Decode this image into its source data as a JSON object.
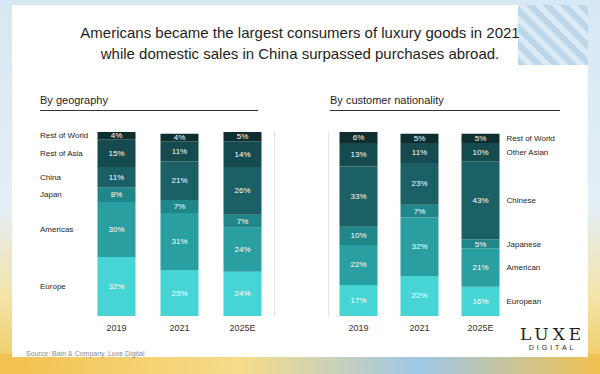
{
  "title": [
    "Americans became the largest consumers of luxury goods in 2021",
    "while domestic sales in China surpassed purchases abroad."
  ],
  "chart_data": [
    {
      "type": "bar",
      "title": "By geography",
      "stacked": true,
      "data_labels": true,
      "tick_labels": "x",
      "categories": [
        "2019",
        "2021",
        "2025E"
      ],
      "ylim": [
        0,
        100
      ],
      "series": [
        {
          "name": "Europe",
          "color": "#47d4d4",
          "values": [
            32,
            25,
            24
          ],
          "value_labels": [
            "32%",
            "25%",
            "24%"
          ]
        },
        {
          "name": "Americas",
          "color": "#2a9fa2",
          "values": [
            30,
            31,
            24
          ],
          "value_labels": [
            "30%",
            "31%",
            "24%"
          ]
        },
        {
          "name": "Japan",
          "color": "#21868a",
          "values": [
            8,
            7,
            7
          ],
          "value_labels": [
            "8%",
            "7%",
            "7%"
          ]
        },
        {
          "name": "China",
          "color": "#1a6064",
          "values": [
            11,
            21,
            26
          ],
          "value_labels": [
            "11%",
            "21%",
            "26%"
          ]
        },
        {
          "name": "Rest of Asia",
          "color": "#154b4e",
          "values": [
            15,
            11,
            14
          ],
          "value_labels": [
            "15%",
            "11%",
            "14%"
          ]
        },
        {
          "name": "Rest of World",
          "color": "#0e2e30",
          "values": [
            4,
            4,
            5
          ],
          "value_labels": [
            "4%",
            "4%",
            "5%"
          ]
        }
      ]
    },
    {
      "type": "bar",
      "title": "By customer nationality",
      "stacked": true,
      "data_labels": true,
      "tick_labels": "x",
      "categories": [
        "2019",
        "2021",
        "2025E"
      ],
      "ylim": [
        0,
        101
      ],
      "series": [
        {
          "name": "European",
          "color": "#47d4d4",
          "values": [
            17,
            22,
            16
          ],
          "value_labels": [
            "17%",
            "22%",
            "16%"
          ]
        },
        {
          "name": "American",
          "color": "#2a9fa2",
          "values": [
            22,
            32,
            21
          ],
          "value_labels": [
            "22%",
            "32%",
            "21%"
          ]
        },
        {
          "name": "Japanese",
          "color": "#21868a",
          "values": [
            10,
            7,
            5
          ],
          "value_labels": [
            "10%",
            "7%",
            "5%"
          ]
        },
        {
          "name": "Chinese",
          "color": "#1a6064",
          "values": [
            33,
            23,
            43
          ],
          "value_labels": [
            "33%",
            "23%",
            "43%"
          ]
        },
        {
          "name": "Other Asian",
          "color": "#154b4e",
          "values": [
            13,
            11,
            10
          ],
          "value_labels": [
            "13%",
            "11%",
            "10%"
          ]
        },
        {
          "name": "Rest of World",
          "color": "#0e2e30",
          "values": [
            6,
            5,
            5
          ],
          "value_labels": [
            "6%",
            "5%",
            "5%"
          ]
        }
      ]
    }
  ],
  "source": "Source: Bain & Company, Luxe Digital",
  "logo": [
    "LUXE",
    "DIGITAL"
  ]
}
